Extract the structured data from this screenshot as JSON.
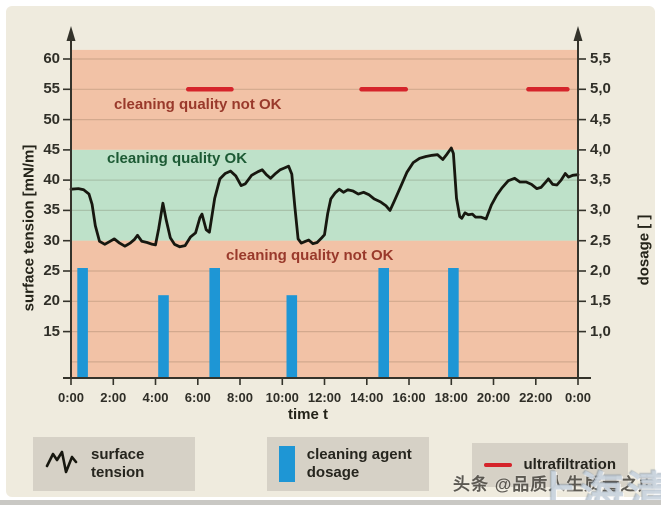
{
  "page": {
    "background": "#EFEBDE",
    "frame_color": "#FFFFFF",
    "bottom_strip_color": "#C9C8C4"
  },
  "chart_data": {
    "type": "line+bar",
    "title": "",
    "x_axis": {
      "label": "time t",
      "tick_hours": [
        0,
        2,
        4,
        6,
        8,
        10,
        12,
        14,
        16,
        18,
        20,
        22,
        24
      ],
      "tick_labels": [
        "0:00",
        "2:00",
        "4:00",
        "6:00",
        "8:00",
        "10:00",
        "12:00",
        "14:00",
        "16:00",
        "18:00",
        "20:00",
        "22:00",
        "0:00"
      ],
      "range_hours": [
        0,
        24
      ]
    },
    "y_left_axis": {
      "label": "surface tension [mN/m]",
      "ticks": [
        60,
        55,
        50,
        45,
        40,
        35,
        30,
        25,
        20,
        15
      ],
      "range": [
        7.4,
        61.5
      ]
    },
    "y_right_axis": {
      "label": "dosage [ ]",
      "tick_values": [
        5.5,
        5.0,
        4.5,
        4.0,
        3.5,
        3.0,
        2.5,
        2.0,
        1.5,
        1.0
      ],
      "tick_labels": [
        "5,5",
        "5,0",
        "4,5",
        "4,0",
        "3,5",
        "3,0",
        "2,5",
        "2,0",
        "1,5",
        "1,0"
      ],
      "range": [
        0.24,
        5.65
      ]
    },
    "gridlines_mNm": [
      60,
      55,
      50,
      40,
      35,
      25,
      20,
      15,
      10
    ],
    "zones": [
      {
        "label": "cleaning quality not OK",
        "band_mNm": [
          45,
          61.5
        ],
        "fill": "#F2C2A6",
        "label_color": "#99392B"
      },
      {
        "label": "cleaning quality OK",
        "band_mNm": [
          30,
          45
        ],
        "fill": "#BEE1C9",
        "label_color": "#1C5A34"
      },
      {
        "label": "cleaning quality not OK",
        "band_mNm": [
          7.4,
          30
        ],
        "fill": "#F2C2A6",
        "label_color": "#99392B"
      }
    ],
    "series": {
      "surface_tension": {
        "name": "surface tension",
        "color": "#17170F",
        "points_time_h_mNm": [
          [
            0,
            38.5
          ],
          [
            0.35,
            38.6
          ],
          [
            0.6,
            38.4
          ],
          [
            0.85,
            37.7
          ],
          [
            1.0,
            36.0
          ],
          [
            1.15,
            32.5
          ],
          [
            1.35,
            29.9
          ],
          [
            1.6,
            29.4
          ],
          [
            1.85,
            29.9
          ],
          [
            2.05,
            30.3
          ],
          [
            2.3,
            29.6
          ],
          [
            2.55,
            29.1
          ],
          [
            2.8,
            29.6
          ],
          [
            3.0,
            30.2
          ],
          [
            3.15,
            30.9
          ],
          [
            3.35,
            29.9
          ],
          [
            3.6,
            29.7
          ],
          [
            3.85,
            29.4
          ],
          [
            4.0,
            29.3
          ],
          [
            4.15,
            32.0
          ],
          [
            4.35,
            36.2
          ],
          [
            4.5,
            33.5
          ],
          [
            4.7,
            30.5
          ],
          [
            4.9,
            29.4
          ],
          [
            5.15,
            29.0
          ],
          [
            5.4,
            29.2
          ],
          [
            5.65,
            30.6
          ],
          [
            5.9,
            31.3
          ],
          [
            6.1,
            33.8
          ],
          [
            6.2,
            34.4
          ],
          [
            6.4,
            31.8
          ],
          [
            6.55,
            31.4
          ],
          [
            6.8,
            37.0
          ],
          [
            7.05,
            40.2
          ],
          [
            7.3,
            41.1
          ],
          [
            7.55,
            41.5
          ],
          [
            7.8,
            40.7
          ],
          [
            8.05,
            39.1
          ],
          [
            8.25,
            39.4
          ],
          [
            8.55,
            40.8
          ],
          [
            8.85,
            41.4
          ],
          [
            9.05,
            41.7
          ],
          [
            9.25,
            40.9
          ],
          [
            9.45,
            40.3
          ],
          [
            9.65,
            41.0
          ],
          [
            9.9,
            41.7
          ],
          [
            10.1,
            42.0
          ],
          [
            10.3,
            42.3
          ],
          [
            10.45,
            41.0
          ],
          [
            10.6,
            35.5
          ],
          [
            10.75,
            30.3
          ],
          [
            10.9,
            29.6
          ],
          [
            11.1,
            29.9
          ],
          [
            11.25,
            30.1
          ],
          [
            11.45,
            29.5
          ],
          [
            11.65,
            29.7
          ],
          [
            11.85,
            30.4
          ],
          [
            12.0,
            31.0
          ],
          [
            12.15,
            34.5
          ],
          [
            12.3,
            36.9
          ],
          [
            12.5,
            37.9
          ],
          [
            12.7,
            38.5
          ],
          [
            12.9,
            38.0
          ],
          [
            13.1,
            38.4
          ],
          [
            13.35,
            38.2
          ],
          [
            13.6,
            37.7
          ],
          [
            13.85,
            38.0
          ],
          [
            14.1,
            37.6
          ],
          [
            14.35,
            36.9
          ],
          [
            14.65,
            36.4
          ],
          [
            14.9,
            35.8
          ],
          [
            15.1,
            35.0
          ],
          [
            15.3,
            36.5
          ],
          [
            15.6,
            38.9
          ],
          [
            15.9,
            41.3
          ],
          [
            16.2,
            42.9
          ],
          [
            16.5,
            43.6
          ],
          [
            16.8,
            43.9
          ],
          [
            17.1,
            44.1
          ],
          [
            17.35,
            44.2
          ],
          [
            17.6,
            43.4
          ],
          [
            17.8,
            44.3
          ],
          [
            18.0,
            45.3
          ],
          [
            18.1,
            44.4
          ],
          [
            18.25,
            37.0
          ],
          [
            18.4,
            34.0
          ],
          [
            18.5,
            33.7
          ],
          [
            18.65,
            34.6
          ],
          [
            18.8,
            34.3
          ],
          [
            19.0,
            34.4
          ],
          [
            19.15,
            33.9
          ],
          [
            19.4,
            33.9
          ],
          [
            19.65,
            33.6
          ],
          [
            19.9,
            35.9
          ],
          [
            20.15,
            37.5
          ],
          [
            20.4,
            38.7
          ],
          [
            20.7,
            39.9
          ],
          [
            21.0,
            40.3
          ],
          [
            21.25,
            39.7
          ],
          [
            21.55,
            39.7
          ],
          [
            21.8,
            39.3
          ],
          [
            22.05,
            38.6
          ],
          [
            22.25,
            38.8
          ],
          [
            22.45,
            39.6
          ],
          [
            22.6,
            40.2
          ],
          [
            22.8,
            39.3
          ],
          [
            23.0,
            39.2
          ],
          [
            23.2,
            40.0
          ],
          [
            23.4,
            41.1
          ],
          [
            23.55,
            40.5
          ],
          [
            23.75,
            40.8
          ],
          [
            24,
            40.9
          ]
        ]
      },
      "cleaning_agent_dosage": {
        "name": "cleaning agent dosage",
        "color": "#1E96D5",
        "bar_width_h": 0.5,
        "bars_time_h_dosage": [
          [
            0.55,
            2.05
          ],
          [
            4.38,
            1.6
          ],
          [
            6.8,
            2.05
          ],
          [
            10.45,
            1.6
          ],
          [
            14.8,
            2.05
          ],
          [
            18.1,
            2.05
          ]
        ]
      },
      "ultrafiltration": {
        "name": "ultrafiltration",
        "color": "#D5242B",
        "level_dosage": 5.0,
        "intervals_h": [
          [
            5.55,
            7.6
          ],
          [
            13.75,
            15.85
          ],
          [
            21.65,
            23.5
          ]
        ]
      }
    }
  },
  "legend": {
    "box_color": "#D6D1C6",
    "items": [
      {
        "label": "surface tension",
        "swatch": "zigzag-line"
      },
      {
        "label": "cleaning agent dosage",
        "swatch": "blue-bar"
      },
      {
        "label": "ultrafiltration",
        "swatch": "red-line"
      }
    ]
  },
  "watermarks": {
    "toutiao": "头条 @品质人生质量之声",
    "corner": "上海清"
  }
}
